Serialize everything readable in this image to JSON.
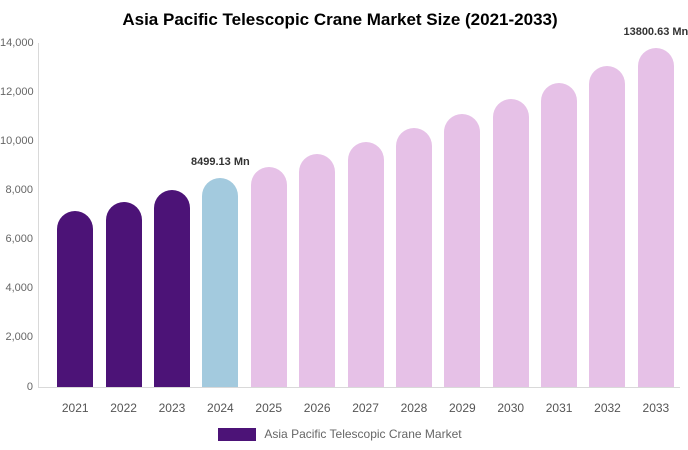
{
  "title": "Asia Pacific Telescopic Crane Market Size (2021-2033)",
  "legend": {
    "label": "Asia Pacific Telescopic Crane Market",
    "swatch_color": "#4c1377"
  },
  "colors": {
    "historical_bar": "#4c1377",
    "base_year_bar": "#a3cade",
    "forecast_bar": "#e6c1e7",
    "axis_line": "#d9d9d9",
    "y_tick_text": "#666666",
    "x_tick_text": "#555555",
    "annotation_text": "#333333",
    "legend_text": "#666666",
    "title_text": "#000000",
    "background": "#ffffff"
  },
  "chart_data": {
    "type": "bar",
    "title": "Asia Pacific Telescopic Crane Market Size (2021-2033)",
    "xlabel": "",
    "ylabel": "",
    "categories": [
      "2021",
      "2022",
      "2023",
      "2024",
      "2025",
      "2026",
      "2027",
      "2028",
      "2029",
      "2030",
      "2031",
      "2032",
      "2033"
    ],
    "values": [
      7150,
      7550,
      8000,
      8499.13,
      8970,
      9466,
      9990,
      10543,
      11126,
      11742,
      12392,
      13077,
      13800.63
    ],
    "bar_colors": [
      "#4c1377",
      "#4c1377",
      "#4c1377",
      "#a3cade",
      "#e6c1e7",
      "#e6c1e7",
      "#e6c1e7",
      "#e6c1e7",
      "#e6c1e7",
      "#e6c1e7",
      "#e6c1e7",
      "#e6c1e7",
      "#e6c1e7"
    ],
    "ylim": [
      0,
      14000
    ],
    "yticks": [
      0,
      2000,
      4000,
      6000,
      8000,
      10000,
      12000,
      14000
    ],
    "ytick_labels": [
      "0",
      "2,000",
      "4,000",
      "6,000",
      "8,000",
      "10,000",
      "12,000",
      "14,000"
    ],
    "grid": false,
    "legend_position": "bottom",
    "legend_entries": [
      "Asia Pacific Telescopic Crane Market"
    ],
    "annotations": [
      {
        "category": "2024",
        "text": "8499.13 Mn"
      },
      {
        "category": "2033",
        "text": "13800.63 Mn"
      }
    ]
  }
}
